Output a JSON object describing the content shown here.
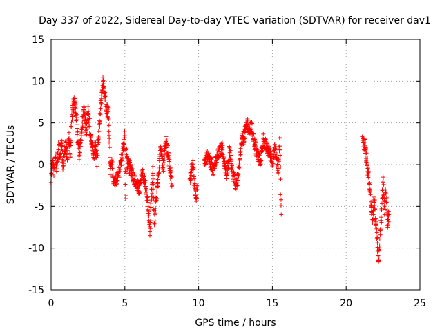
{
  "chart_data": {
    "type": "scatter",
    "title": "Day 337 of 2022, Sidereal Day-to-day VTEC variation (SDTVAR) for receiver dav1",
    "xlabel": "GPS time / hours",
    "ylabel": "SDTVAR / TECUs",
    "xlim": [
      0,
      25
    ],
    "ylim": [
      -15,
      15
    ],
    "xticks": [
      "0",
      "5",
      "10",
      "15",
      "20",
      "25"
    ],
    "yticks": [
      "15",
      "10",
      "5",
      "0",
      "-5",
      "-10",
      "-15"
    ],
    "grid": true,
    "marker": "plus",
    "series_color": "#ff0000",
    "segments": [
      [
        0.0,
        -1.5
      ],
      [
        0.1,
        0.5
      ],
      [
        0.2,
        -1.0
      ],
      [
        0.3,
        1.2
      ],
      [
        0.4,
        -0.5
      ],
      [
        0.5,
        2.0
      ],
      [
        0.6,
        1.0
      ],
      [
        0.7,
        3.0
      ],
      [
        0.8,
        0.0
      ],
      [
        0.9,
        1.5
      ],
      [
        1.0,
        2.5
      ],
      [
        1.1,
        0.5
      ],
      [
        1.2,
        3.5
      ],
      [
        1.3,
        1.0
      ],
      [
        1.4,
        5.5
      ],
      [
        1.5,
        7.0
      ],
      [
        1.6,
        8.0
      ],
      [
        1.7,
        6.0
      ],
      [
        1.8,
        3.0
      ],
      [
        1.9,
        1.0
      ],
      [
        2.0,
        2.5
      ],
      [
        2.1,
        4.0
      ],
      [
        2.2,
        7.0
      ],
      [
        2.3,
        5.5
      ],
      [
        2.4,
        4.0
      ],
      [
        2.5,
        6.5
      ],
      [
        2.6,
        5.0
      ],
      [
        2.7,
        3.0
      ],
      [
        2.8,
        2.0
      ],
      [
        2.9,
        1.0
      ],
      [
        3.0,
        2.5
      ],
      [
        3.1,
        0.5
      ],
      [
        3.2,
        3.0
      ],
      [
        3.3,
        5.0
      ],
      [
        3.4,
        8.0
      ],
      [
        3.5,
        10.0
      ],
      [
        3.6,
        9.5
      ],
      [
        3.7,
        7.0
      ],
      [
        3.8,
        6.5
      ],
      [
        3.9,
        6.0
      ],
      [
        4.0,
        -0.5
      ],
      [
        4.1,
        0.5
      ],
      [
        4.2,
        -1.5
      ],
      [
        4.4,
        -2.0
      ],
      [
        4.6,
        -1.0
      ],
      [
        4.8,
        1.0
      ],
      [
        5.0,
        3.5
      ],
      [
        5.05,
        -4.5
      ],
      [
        5.1,
        1.5
      ],
      [
        5.2,
        0.0
      ],
      [
        5.4,
        -0.5
      ],
      [
        5.6,
        -1.5
      ],
      [
        5.8,
        -2.5
      ],
      [
        6.0,
        -3.0
      ],
      [
        6.2,
        -1.0
      ],
      [
        6.4,
        -2.5
      ],
      [
        6.6,
        -5.5
      ],
      [
        6.7,
        -8.0
      ],
      [
        6.8,
        -4.0
      ],
      [
        6.9,
        -1.0
      ],
      [
        7.0,
        -7.0
      ],
      [
        7.1,
        -5.0
      ],
      [
        7.2,
        -3.0
      ],
      [
        7.3,
        -1.5
      ],
      [
        7.4,
        2.5
      ],
      [
        7.6,
        0.0
      ],
      [
        7.8,
        3.0
      ],
      [
        8.2,
        -2.5
      ],
      [
        9.4,
        -2.0
      ],
      [
        9.5,
        -1.0
      ],
      [
        9.6,
        0.5
      ],
      [
        9.7,
        -2.5
      ],
      [
        9.8,
        -4.0
      ],
      [
        9.9,
        -3.0
      ],
      [
        10.4,
        0.5
      ],
      [
        10.6,
        1.0
      ],
      [
        11.0,
        -0.5
      ],
      [
        11.2,
        0.5
      ],
      [
        11.4,
        1.5
      ],
      [
        11.6,
        2.0
      ],
      [
        11.8,
        -0.5
      ],
      [
        11.9,
        -1.5
      ],
      [
        12.0,
        0.0
      ],
      [
        12.1,
        2.0
      ],
      [
        12.2,
        0.5
      ],
      [
        12.3,
        -1.0
      ],
      [
        12.5,
        -2.5
      ],
      [
        12.7,
        -1.5
      ],
      [
        12.9,
        2.5
      ],
      [
        13.1,
        3.5
      ],
      [
        13.3,
        5.0
      ],
      [
        13.4,
        4.0
      ],
      [
        13.6,
        4.5
      ],
      [
        13.8,
        2.5
      ],
      [
        14.0,
        1.0
      ],
      [
        14.2,
        0.5
      ],
      [
        14.4,
        3.0
      ],
      [
        14.6,
        2.0
      ],
      [
        14.8,
        1.5
      ],
      [
        15.0,
        0.5
      ],
      [
        15.2,
        2.0
      ],
      [
        15.4,
        -1.0
      ],
      [
        15.5,
        3.5
      ],
      [
        15.6,
        -6.0
      ],
      [
        21.1,
        3.0
      ],
      [
        21.3,
        2.0
      ],
      [
        21.5,
        -1.0
      ],
      [
        21.6,
        -3.0
      ],
      [
        21.7,
        -5.0
      ],
      [
        21.8,
        -6.5
      ],
      [
        21.9,
        -4.0
      ],
      [
        22.0,
        -7.0
      ],
      [
        22.1,
        -9.0
      ],
      [
        22.2,
        -11.5
      ],
      [
        22.3,
        -8.0
      ],
      [
        22.4,
        -6.0
      ],
      [
        22.5,
        -1.0
      ],
      [
        22.6,
        -5.5
      ],
      [
        22.7,
        -3.0
      ],
      [
        22.8,
        -7.0
      ],
      [
        22.9,
        -6.0
      ]
    ]
  }
}
